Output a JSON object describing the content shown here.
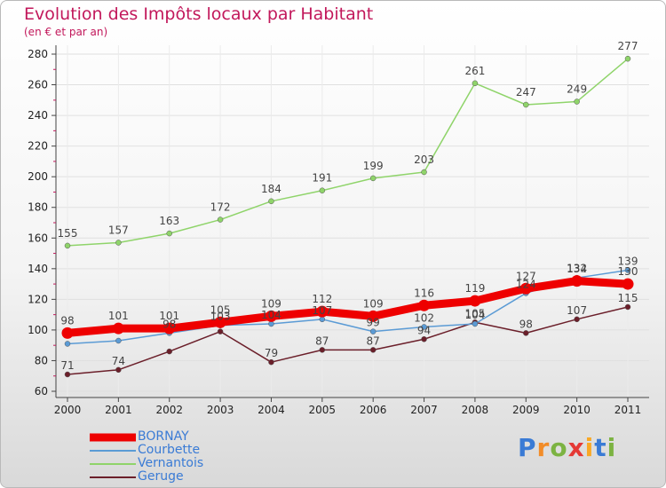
{
  "chart_data": {
    "type": "line",
    "title": "Evolution des Impôts locaux par Habitant",
    "subtitle": "(en € et par an)",
    "categories": [
      "2000",
      "2001",
      "2002",
      "2003",
      "2004",
      "2005",
      "2006",
      "2007",
      "2008",
      "2009",
      "2010",
      "2011"
    ],
    "ylim": [
      60,
      280
    ],
    "yticks": [
      60,
      80,
      100,
      120,
      140,
      160,
      180,
      200,
      220,
      240,
      260,
      280
    ],
    "grid": true,
    "series": [
      {
        "name": "Geruge",
        "color": "#6b1f2a",
        "values": [
          71,
          74,
          86,
          99,
          79,
          87,
          87,
          94,
          105,
          98,
          107,
          115
        ],
        "labels": [
          "71",
          "74",
          "",
          "",
          "79",
          "87",
          "87",
          "94",
          "105",
          "98",
          "107",
          "115"
        ]
      },
      {
        "name": "Vernantois",
        "color": "#8fd46a",
        "values": [
          155,
          157,
          163,
          172,
          184,
          191,
          199,
          203,
          261,
          247,
          249,
          277
        ],
        "labels": [
          "155",
          "157",
          "163",
          "172",
          "184",
          "191",
          "199",
          "203",
          "261",
          "247",
          "249",
          "277"
        ]
      },
      {
        "name": "Courbette",
        "color": "#5b9bd5",
        "values": [
          91,
          93,
          98,
          103,
          104,
          107,
          99,
          102,
          104,
          124,
          134,
          139
        ],
        "labels": [
          "",
          "",
          "98",
          "103",
          "104",
          "107",
          "99",
          "102",
          "104",
          "124",
          "134",
          "139"
        ]
      },
      {
        "name": "BORNAY",
        "color": "#ee0000",
        "values": [
          98,
          101,
          101,
          105,
          109,
          112,
          109,
          116,
          119,
          127,
          132,
          130
        ],
        "labels": [
          "98",
          "101",
          "101",
          "105",
          "109",
          "112",
          "109",
          "116",
          "119",
          "127",
          "132",
          "130"
        ]
      }
    ],
    "legend": [
      "BORNAY",
      "Courbette",
      "Vernantois",
      "Geruge"
    ]
  },
  "legend_colors": {
    "BORNAY": "#ee0000",
    "Courbette": "#3a7bd5",
    "Vernantois": "#66bb44",
    "Geruge": "#6b1f2a"
  },
  "brand": {
    "text": "Proxiti"
  }
}
